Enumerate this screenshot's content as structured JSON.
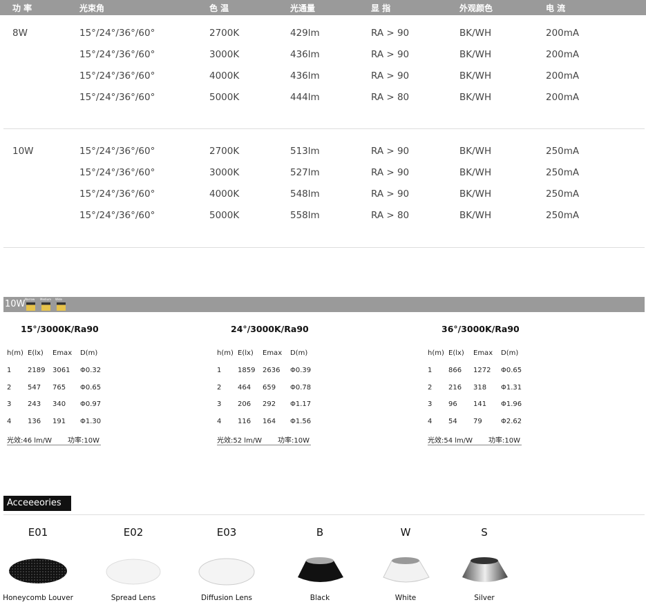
{
  "spec_table": {
    "header": [
      "功 率",
      "光束角",
      "色 温",
      "光通量",
      "显 指",
      "外观颜色",
      "电 流"
    ],
    "groups": [
      {
        "power": "8W",
        "rows": [
          [
            "15°/24°/36°/60°",
            "2700K",
            "429lm",
            "RA > 90",
            "BK/WH",
            "200mA"
          ],
          [
            "15°/24°/36°/60°",
            "3000K",
            "436lm",
            "RA > 90",
            "BK/WH",
            "200mA"
          ],
          [
            "15°/24°/36°/60°",
            "4000K",
            "436lm",
            "RA > 90",
            "BK/WH",
            "200mA"
          ],
          [
            "15°/24°/36°/60°",
            "5000K",
            "444lm",
            "RA > 80",
            "BK/WH",
            "200mA"
          ]
        ]
      },
      {
        "power": "10W",
        "rows": [
          [
            "15°/24°/36°/60°",
            "2700K",
            "513lm",
            "RA > 90",
            "BK/WH",
            "250mA"
          ],
          [
            "15°/24°/36°/60°",
            "3000K",
            "527lm",
            "RA > 90",
            "BK/WH",
            "250mA"
          ],
          [
            "15°/24°/36°/60°",
            "4000K",
            "548lm",
            "RA > 90",
            "BK/WH",
            "250mA"
          ],
          [
            "15°/24°/36°/60°",
            "5000K",
            "558lm",
            "RA > 80",
            "BK/WH",
            "250mA"
          ]
        ]
      }
    ]
  },
  "photometric": {
    "section": "10W",
    "icons": [
      "Narrow",
      "Medium",
      "Wide"
    ],
    "tables": [
      {
        "title": "15°/3000K/Ra90",
        "header": [
          "h(m)",
          "E(lx)",
          "Emax",
          "D(m)"
        ],
        "rows": [
          [
            "1",
            "2189",
            "3061",
            "Φ0.32"
          ],
          [
            "2",
            "547",
            "765",
            "Φ0.65"
          ],
          [
            "3",
            "243",
            "340",
            "Φ0.97"
          ],
          [
            "4",
            "136",
            "191",
            "Φ1.30"
          ]
        ],
        "efficacy": "光效:46 lm/W",
        "power": "功率:10W"
      },
      {
        "title": "24°/3000K/Ra90",
        "header": [
          "h(m)",
          "E(lx)",
          "Emax",
          "D(m)"
        ],
        "rows": [
          [
            "1",
            "1859",
            "2636",
            "Φ0.39"
          ],
          [
            "2",
            "464",
            "659",
            "Φ0.78"
          ],
          [
            "3",
            "206",
            "292",
            "Φ1.17"
          ],
          [
            "4",
            "116",
            "164",
            "Φ1.56"
          ]
        ],
        "efficacy": "光效:52 lm/W",
        "power": "功率:10W"
      },
      {
        "title": "36°/3000K/Ra90",
        "header": [
          "h(m)",
          "E(lx)",
          "Emax",
          "D(m)"
        ],
        "rows": [
          [
            "1",
            "866",
            "1272",
            "Φ0.65"
          ],
          [
            "2",
            "216",
            "318",
            "Φ1.31"
          ],
          [
            "3",
            "96",
            "141",
            "Φ1.96"
          ],
          [
            "4",
            "54",
            "79",
            "Φ2.62"
          ]
        ],
        "efficacy": "光效:54 lm/W",
        "power": "功率:10W"
      }
    ]
  },
  "accessories": {
    "title": "Acceeeories",
    "items": [
      {
        "code": "E01",
        "name": "Honeycomb Louver"
      },
      {
        "code": "E02",
        "name": "Spread Lens"
      },
      {
        "code": "E03",
        "name": "Diffusion Lens"
      },
      {
        "code": "B",
        "name": "Black"
      },
      {
        "code": "W",
        "name": "White"
      },
      {
        "code": "S",
        "name": "Silver"
      }
    ]
  }
}
